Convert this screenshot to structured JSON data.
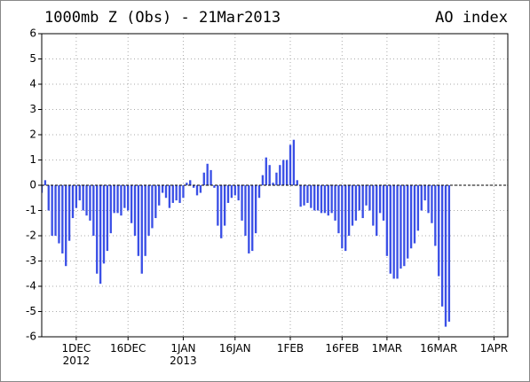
{
  "chart_data": {
    "type": "bar",
    "title": "1000mb Z (Obs) - 21Mar2013",
    "subtitle": "AO index",
    "color": "#3a4fe6",
    "grid": true,
    "xlim": [
      "2012-11-21",
      "2013-04-05"
    ],
    "xticks": [
      {
        "value": "2012-12-01",
        "label": "1DEC\n2012"
      },
      {
        "value": "2012-12-16",
        "label": "16DEC"
      },
      {
        "value": "2013-01-01",
        "label": "1JAN\n2013"
      },
      {
        "value": "2013-01-16",
        "label": "16JAN"
      },
      {
        "value": "2013-02-01",
        "label": "1FEB"
      },
      {
        "value": "2013-02-16",
        "label": "16FEB"
      },
      {
        "value": "2013-03-01",
        "label": "1MAR"
      },
      {
        "value": "2013-03-16",
        "label": "16MAR"
      },
      {
        "value": "2013-04-01",
        "label": "1APR"
      }
    ],
    "ylim": [
      -6,
      6
    ],
    "yticks": [
      -6,
      -5,
      -4,
      -3,
      -2,
      -1,
      0,
      1,
      2,
      3,
      4,
      5,
      6
    ],
    "x": [
      "2012-11-21",
      "2012-11-22",
      "2012-11-23",
      "2012-11-24",
      "2012-11-25",
      "2012-11-26",
      "2012-11-27",
      "2012-11-28",
      "2012-11-29",
      "2012-11-30",
      "2012-12-01",
      "2012-12-02",
      "2012-12-03",
      "2012-12-04",
      "2012-12-05",
      "2012-12-06",
      "2012-12-07",
      "2012-12-08",
      "2012-12-09",
      "2012-12-10",
      "2012-12-11",
      "2012-12-12",
      "2012-12-13",
      "2012-12-14",
      "2012-12-15",
      "2012-12-16",
      "2012-12-17",
      "2012-12-18",
      "2012-12-19",
      "2012-12-20",
      "2012-12-21",
      "2012-12-22",
      "2012-12-23",
      "2012-12-24",
      "2012-12-25",
      "2012-12-26",
      "2012-12-27",
      "2012-12-28",
      "2012-12-29",
      "2012-12-30",
      "2012-12-31",
      "2013-01-01",
      "2013-01-02",
      "2013-01-03",
      "2013-01-04",
      "2013-01-05",
      "2013-01-06",
      "2013-01-07",
      "2013-01-08",
      "2013-01-09",
      "2013-01-10",
      "2013-01-11",
      "2013-01-12",
      "2013-01-13",
      "2013-01-14",
      "2013-01-15",
      "2013-01-16",
      "2013-01-17",
      "2013-01-18",
      "2013-01-19",
      "2013-01-20",
      "2013-01-21",
      "2013-01-22",
      "2013-01-23",
      "2013-01-24",
      "2013-01-25",
      "2013-01-26",
      "2013-01-27",
      "2013-01-28",
      "2013-01-29",
      "2013-01-30",
      "2013-01-31",
      "2013-02-01",
      "2013-02-02",
      "2013-02-03",
      "2013-02-04",
      "2013-02-05",
      "2013-02-06",
      "2013-02-07",
      "2013-02-08",
      "2013-02-09",
      "2013-02-10",
      "2013-02-11",
      "2013-02-12",
      "2013-02-13",
      "2013-02-14",
      "2013-02-15",
      "2013-02-16",
      "2013-02-17",
      "2013-02-18",
      "2013-02-19",
      "2013-02-20",
      "2013-02-21",
      "2013-02-22",
      "2013-02-23",
      "2013-02-24",
      "2013-02-25",
      "2013-02-26",
      "2013-02-27",
      "2013-02-28",
      "2013-03-01",
      "2013-03-02",
      "2013-03-03",
      "2013-03-04",
      "2013-03-05",
      "2013-03-06",
      "2013-03-07",
      "2013-03-08",
      "2013-03-09",
      "2013-03-10",
      "2013-03-11",
      "2013-03-12",
      "2013-03-13",
      "2013-03-14",
      "2013-03-15",
      "2013-03-16",
      "2013-03-17",
      "2013-03-18",
      "2013-03-19"
    ],
    "values": [
      -0.3,
      0.2,
      -1.0,
      -2.0,
      -2.0,
      -2.3,
      -2.7,
      -3.2,
      -2.2,
      -1.3,
      -0.9,
      -0.6,
      -1.0,
      -1.2,
      -1.4,
      -2.0,
      -3.5,
      -3.9,
      -3.1,
      -2.6,
      -1.9,
      -1.1,
      -1.1,
      -1.2,
      -0.9,
      -1.0,
      -1.5,
      -2.0,
      -2.8,
      -3.5,
      -2.8,
      -2.0,
      -1.7,
      -1.3,
      -0.8,
      -0.3,
      -0.5,
      -0.9,
      -0.7,
      -0.6,
      -0.7,
      -0.5,
      0.1,
      0.2,
      -0.1,
      -0.4,
      -0.3,
      0.5,
      0.85,
      0.6,
      -0.1,
      -1.6,
      -2.1,
      -1.6,
      -0.7,
      -0.5,
      -0.4,
      -0.6,
      -1.4,
      -2.0,
      -2.7,
      -2.6,
      -1.9,
      -0.5,
      0.4,
      1.1,
      0.8,
      0.1,
      0.5,
      0.8,
      1.0,
      1.0,
      1.6,
      1.8,
      0.2,
      -0.85,
      -0.8,
      -0.7,
      -0.9,
      -1.0,
      -1.0,
      -1.1,
      -1.1,
      -1.2,
      -1.1,
      -1.4,
      -1.9,
      -2.5,
      -2.6,
      -2.0,
      -1.6,
      -1.4,
      -1.0,
      -1.3,
      -0.8,
      -1.0,
      -1.6,
      -2.0,
      -1.1,
      -1.4,
      -2.8,
      -3.5,
      -3.7,
      -3.7,
      -3.3,
      -3.2,
      -2.9,
      -2.5,
      -2.3,
      -1.8,
      -1.0,
      -0.6,
      -1.1,
      -1.5,
      -2.4,
      -3.6,
      -4.8,
      -5.6,
      -5.4
    ]
  }
}
